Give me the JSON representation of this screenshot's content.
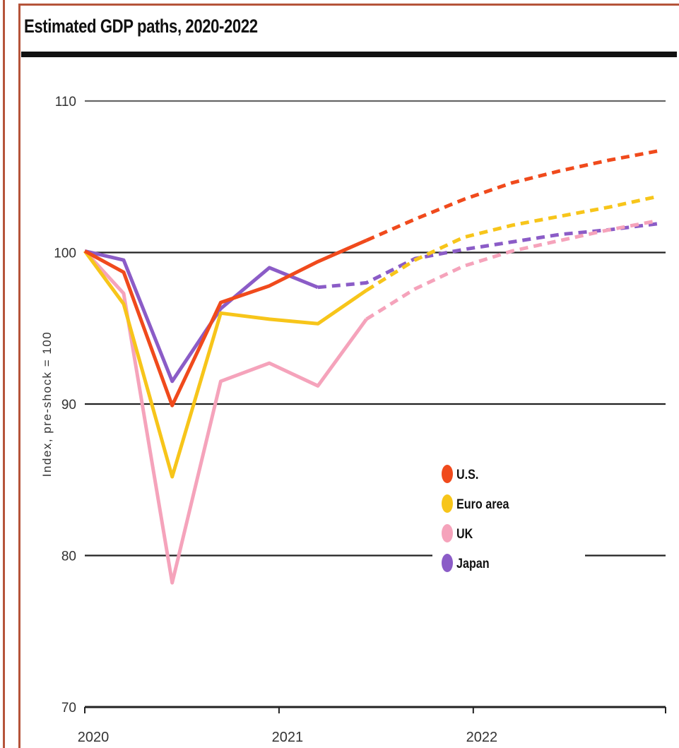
{
  "chart_data": {
    "type": "line",
    "title": "Estimated GDP paths, 2020-2022",
    "ylabel": "Index, pre-shock = 100",
    "xlabel": "",
    "x_ticks": [
      "2020",
      "2021",
      "2022"
    ],
    "y_ticks": [
      "110",
      "100",
      "90",
      "80",
      "70"
    ],
    "ylim": [
      70,
      110
    ],
    "xlim": [
      2020,
      2022.99
    ],
    "grid": "horizontal",
    "legend_position": "lower-right",
    "series": [
      {
        "name": "U.S.",
        "color": "#f04a1c",
        "actual": [
          [
            2020.0,
            100.1
          ],
          [
            2020.2,
            98.7
          ],
          [
            2020.45,
            89.9
          ],
          [
            2020.7,
            96.7
          ],
          [
            2020.95,
            97.8
          ],
          [
            2021.2,
            99.4
          ],
          [
            2021.45,
            100.8
          ]
        ],
        "forecast": [
          [
            2021.45,
            100.8
          ],
          [
            2021.7,
            102.2
          ],
          [
            2021.95,
            103.5
          ],
          [
            2022.2,
            104.6
          ],
          [
            2022.45,
            105.4
          ],
          [
            2022.7,
            106.1
          ],
          [
            2022.95,
            106.7
          ]
        ]
      },
      {
        "name": "Euro area",
        "color": "#f7c51a",
        "actual": [
          [
            2020.0,
            100.1
          ],
          [
            2020.2,
            96.6
          ],
          [
            2020.45,
            85.2
          ],
          [
            2020.7,
            96.0
          ],
          [
            2020.95,
            95.6
          ],
          [
            2021.2,
            95.3
          ],
          [
            2021.45,
            97.5
          ]
        ],
        "forecast": [
          [
            2021.45,
            97.5
          ],
          [
            2021.7,
            99.5
          ],
          [
            2021.95,
            101.0
          ],
          [
            2022.2,
            101.8
          ],
          [
            2022.45,
            102.4
          ],
          [
            2022.7,
            103.0
          ],
          [
            2022.95,
            103.7
          ]
        ]
      },
      {
        "name": "UK",
        "color": "#f5a3bb",
        "actual": [
          [
            2020.0,
            100.1
          ],
          [
            2020.2,
            97.3
          ],
          [
            2020.45,
            78.2
          ],
          [
            2020.7,
            91.5
          ],
          [
            2020.95,
            92.7
          ],
          [
            2021.2,
            91.2
          ],
          [
            2021.45,
            95.6
          ]
        ],
        "forecast": [
          [
            2021.45,
            95.6
          ],
          [
            2021.7,
            97.6
          ],
          [
            2021.95,
            99.1
          ],
          [
            2022.2,
            100.1
          ],
          [
            2022.45,
            100.8
          ],
          [
            2022.7,
            101.5
          ],
          [
            2022.95,
            102.1
          ]
        ]
      },
      {
        "name": "Japan",
        "color": "#8b5cc7",
        "actual": [
          [
            2020.0,
            100.1
          ],
          [
            2020.2,
            99.5
          ],
          [
            2020.45,
            91.5
          ],
          [
            2020.7,
            96.3
          ],
          [
            2020.95,
            99.0
          ],
          [
            2021.2,
            97.7
          ]
        ],
        "forecast": [
          [
            2021.2,
            97.7
          ],
          [
            2021.45,
            98.0
          ],
          [
            2021.7,
            99.6
          ],
          [
            2021.95,
            100.2
          ],
          [
            2022.2,
            100.7
          ],
          [
            2022.45,
            101.2
          ],
          [
            2022.7,
            101.5
          ],
          [
            2022.95,
            101.9
          ]
        ]
      }
    ]
  }
}
